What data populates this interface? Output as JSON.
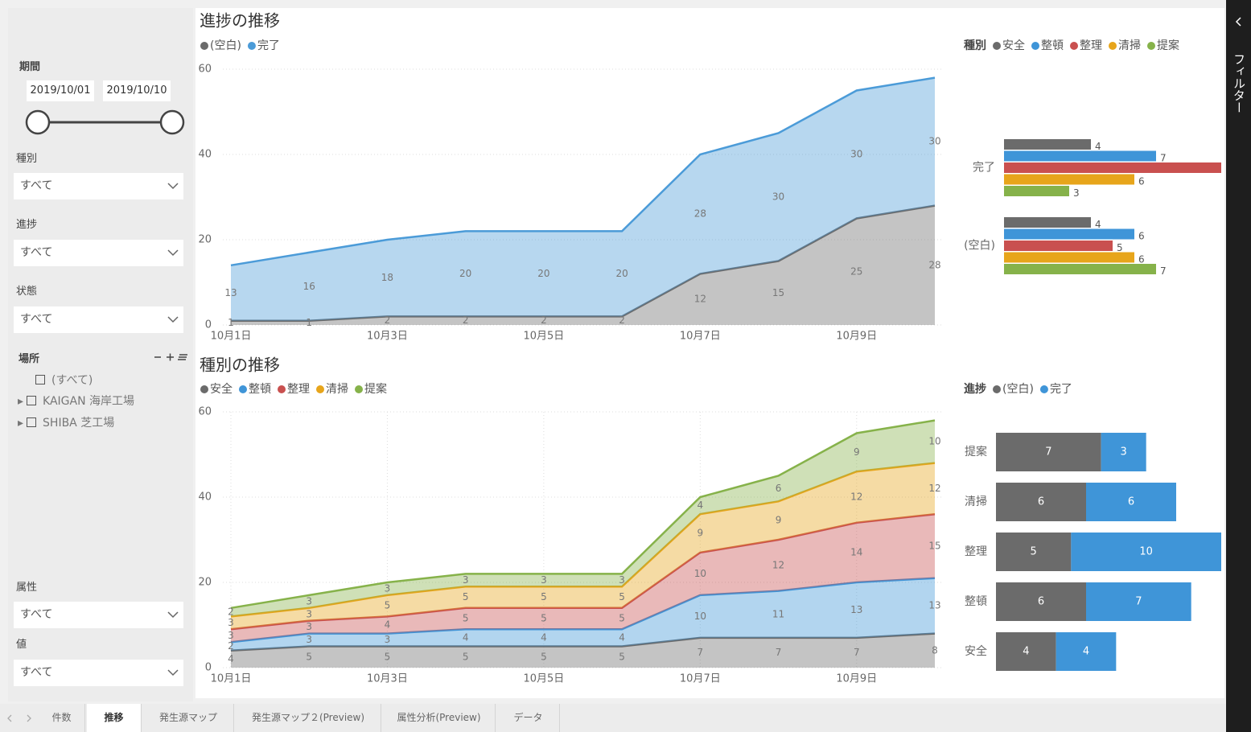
{
  "chart_data": [
    {
      "type": "area",
      "stacked": true,
      "title": "進捗の推移",
      "categories": [
        "10月1日",
        null,
        "10月3日",
        null,
        "10月5日",
        null,
        "10月7日",
        null,
        "10月9日",
        null
      ],
      "series": [
        {
          "name": "(空白)",
          "color": "#6b6b6b",
          "values": [
            1,
            1,
            2,
            2,
            2,
            2,
            12,
            15,
            25,
            28
          ]
        },
        {
          "name": "完了",
          "color": "#4b9bd8",
          "values": [
            13,
            16,
            18,
            20,
            20,
            20,
            28,
            30,
            30,
            30
          ]
        }
      ],
      "ylim": [
        0,
        60
      ],
      "yticks": [
        0,
        20,
        40,
        60
      ],
      "grid": true
    },
    {
      "type": "bar",
      "orientation": "horizontal",
      "legend_title": "種別",
      "categories": [
        "完了",
        "(空白)"
      ],
      "series": [
        {
          "name": "安全",
          "color": "#6b6b6b",
          "values": [
            4,
            4
          ]
        },
        {
          "name": "整頓",
          "color": "#3f95d8",
          "values": [
            7,
            6
          ]
        },
        {
          "name": "整理",
          "color": "#c9504f",
          "values": [
            10,
            5
          ]
        },
        {
          "name": "清掃",
          "color": "#e7a51b",
          "values": [
            6,
            6
          ]
        },
        {
          "name": "提案",
          "color": "#86b24a",
          "values": [
            3,
            7
          ]
        }
      ],
      "xlim": [
        0,
        10
      ]
    },
    {
      "type": "area",
      "stacked": true,
      "title": "種別の推移",
      "categories": [
        "10月1日",
        null,
        "10月3日",
        null,
        "10月5日",
        null,
        "10月7日",
        null,
        "10月9日",
        null
      ],
      "series": [
        {
          "name": "安全",
          "color": "#6b6b6b",
          "values": [
            4,
            5,
            5,
            5,
            5,
            5,
            7,
            7,
            7,
            8
          ]
        },
        {
          "name": "整頓",
          "color": "#3f95d8",
          "values": [
            2,
            3,
            3,
            4,
            4,
            4,
            10,
            11,
            13,
            13
          ]
        },
        {
          "name": "整理",
          "color": "#c9504f",
          "values": [
            3,
            3,
            4,
            5,
            5,
            5,
            10,
            12,
            14,
            15
          ]
        },
        {
          "name": "清掃",
          "color": "#e7a51b",
          "values": [
            3,
            3,
            5,
            5,
            5,
            5,
            9,
            9,
            12,
            12
          ]
        },
        {
          "name": "提案",
          "color": "#86b24a",
          "values": [
            2,
            3,
            3,
            3,
            3,
            3,
            4,
            6,
            9,
            10
          ]
        }
      ],
      "ylim": [
        0,
        60
      ],
      "yticks": [
        0,
        20,
        40,
        60
      ],
      "grid": true,
      "xgrid": true
    },
    {
      "type": "bar",
      "orientation": "horizontal",
      "stacked": true,
      "legend_title": "進捗",
      "categories": [
        "提案",
        "清掃",
        "整理",
        "整頓",
        "安全"
      ],
      "series": [
        {
          "name": "(空白)",
          "color": "#6b6b6b",
          "values": [
            7,
            6,
            5,
            6,
            4
          ]
        },
        {
          "name": "完了",
          "color": "#3f95d8",
          "values": [
            3,
            6,
            10,
            7,
            4
          ]
        }
      ],
      "xlim": [
        0,
        15
      ]
    }
  ],
  "sidebar": {
    "period": {
      "label": "期間",
      "start": "2019/10/01",
      "end": "2019/10/10"
    },
    "filters": [
      {
        "label": "種別",
        "value": "すべて"
      },
      {
        "label": "進捗",
        "value": "すべて"
      },
      {
        "label": "状態",
        "value": "すべて"
      },
      {
        "label": "属性",
        "value": "すべて"
      },
      {
        "label": "値",
        "value": "すべて"
      }
    ],
    "location": {
      "label": "場所",
      "items": [
        "(すべて)",
        "KAIGAN 海岸工場",
        "SHIBA 芝工場"
      ]
    }
  },
  "tabs": [
    "件数",
    "推移",
    "発生源マップ",
    "発生源マップ２(Preview)",
    "属性分析(Preview)",
    "データ"
  ],
  "filter_pane": "フィルター"
}
